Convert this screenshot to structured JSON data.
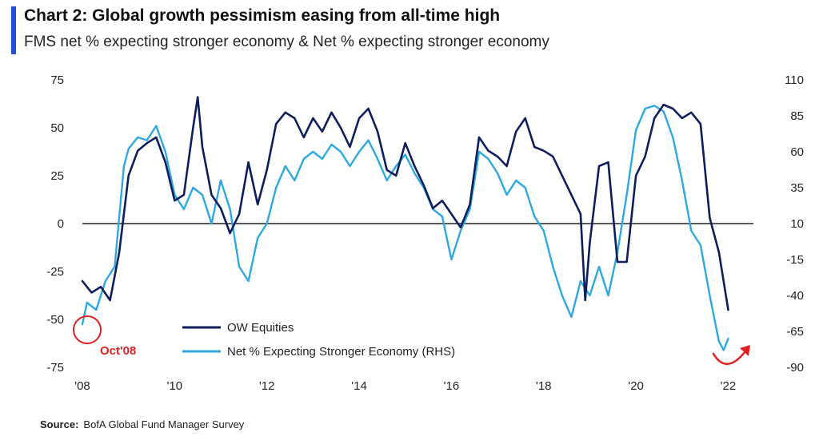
{
  "title": "Chart 2: Global growth pessimism easing from all-time high",
  "subtitle": "FMS net % expecting stronger economy & Net % expecting stronger economy",
  "source": {
    "label": "Source:",
    "text": "BofA Global Fund Manager Survey"
  },
  "colors": {
    "accent": "#1f4fd8",
    "series1": "#0d1e5e",
    "series2": "#2ea8e0",
    "annotation": "#e02020",
    "zero_line": "#222222"
  },
  "chart_data": {
    "type": "line",
    "title": "Chart 2: Global growth pessimism easing from all-time high",
    "xlim": [
      2008,
      2022.2
    ],
    "x_ticks": [
      "'08",
      "'10",
      "'12",
      "'14",
      "'16",
      "'18",
      "'20",
      "'22"
    ],
    "ylim_left": [
      -75,
      75
    ],
    "y_ticks_left": [
      "75",
      "50",
      "25",
      "0",
      "-25",
      "-50",
      "-75"
    ],
    "ylim_right": [
      -90,
      110
    ],
    "y_ticks_right": [
      "110",
      "85",
      "60",
      "35",
      "10",
      "-15",
      "-40",
      "-65",
      "-90"
    ],
    "legend_position": "bottom-left",
    "series": [
      {
        "name": "OW Equities",
        "axis": "left",
        "x": [
          2008.0,
          2008.2,
          2008.4,
          2008.6,
          2008.8,
          2009.0,
          2009.2,
          2009.4,
          2009.6,
          2009.8,
          2010.0,
          2010.2,
          2010.4,
          2010.5,
          2010.6,
          2010.8,
          2011.0,
          2011.2,
          2011.4,
          2011.6,
          2011.8,
          2012.0,
          2012.2,
          2012.4,
          2012.6,
          2012.8,
          2013.0,
          2013.2,
          2013.4,
          2013.6,
          2013.8,
          2014.0,
          2014.2,
          2014.4,
          2014.6,
          2014.8,
          2015.0,
          2015.2,
          2015.4,
          2015.6,
          2015.8,
          2016.0,
          2016.2,
          2016.4,
          2016.6,
          2016.8,
          2017.0,
          2017.2,
          2017.4,
          2017.6,
          2017.8,
          2018.0,
          2018.2,
          2018.4,
          2018.6,
          2018.8,
          2018.9,
          2019.0,
          2019.2,
          2019.4,
          2019.6,
          2019.8,
          2020.0,
          2020.2,
          2020.4,
          2020.6,
          2020.8,
          2021.0,
          2021.2,
          2021.4,
          2021.6,
          2021.8,
          2022.0
        ],
        "values": [
          -30,
          -36,
          -33,
          -40,
          -15,
          25,
          38,
          42,
          45,
          32,
          12,
          15,
          50,
          66,
          40,
          15,
          8,
          -5,
          5,
          32,
          10,
          28,
          52,
          58,
          55,
          45,
          55,
          48,
          58,
          50,
          40,
          55,
          60,
          48,
          28,
          25,
          42,
          30,
          20,
          8,
          12,
          5,
          -2,
          10,
          45,
          38,
          35,
          30,
          48,
          55,
          40,
          38,
          35,
          25,
          15,
          5,
          -40,
          -10,
          30,
          32,
          -20,
          -20,
          25,
          35,
          55,
          62,
          60,
          55,
          58,
          52,
          3,
          -15,
          -45
        ]
      },
      {
        "name": "Net % Expecting Stronger Economy (RHS)",
        "axis": "right",
        "x": [
          2008.0,
          2008.1,
          2008.3,
          2008.5,
          2008.7,
          2008.9,
          2009.0,
          2009.2,
          2009.4,
          2009.6,
          2009.8,
          2010.0,
          2010.2,
          2010.4,
          2010.6,
          2010.8,
          2011.0,
          2011.2,
          2011.4,
          2011.6,
          2011.8,
          2012.0,
          2012.2,
          2012.4,
          2012.6,
          2012.8,
          2013.0,
          2013.2,
          2013.4,
          2013.6,
          2013.8,
          2014.0,
          2014.2,
          2014.4,
          2014.6,
          2014.8,
          2015.0,
          2015.2,
          2015.4,
          2015.6,
          2015.8,
          2016.0,
          2016.2,
          2016.4,
          2016.6,
          2016.8,
          2017.0,
          2017.2,
          2017.4,
          2017.6,
          2017.8,
          2018.0,
          2018.2,
          2018.4,
          2018.6,
          2018.8,
          2019.0,
          2019.2,
          2019.4,
          2019.6,
          2019.8,
          2020.0,
          2020.2,
          2020.4,
          2020.6,
          2020.8,
          2021.0,
          2021.2,
          2021.4,
          2021.6,
          2021.8,
          2021.9,
          2022.0
        ],
        "values": [
          -60,
          -45,
          -50,
          -30,
          -20,
          50,
          62,
          70,
          68,
          78,
          60,
          30,
          20,
          35,
          30,
          10,
          40,
          20,
          -20,
          -30,
          0,
          10,
          35,
          50,
          40,
          55,
          60,
          55,
          65,
          60,
          50,
          60,
          68,
          55,
          40,
          50,
          58,
          45,
          35,
          20,
          15,
          -15,
          5,
          20,
          60,
          55,
          45,
          30,
          40,
          35,
          15,
          5,
          -20,
          -40,
          -55,
          -30,
          -40,
          -20,
          -40,
          -10,
          30,
          75,
          90,
          92,
          88,
          70,
          40,
          5,
          -5,
          -40,
          -72,
          -78,
          -70
        ]
      }
    ]
  },
  "annotations": {
    "oct08_label": "Oct'08"
  }
}
